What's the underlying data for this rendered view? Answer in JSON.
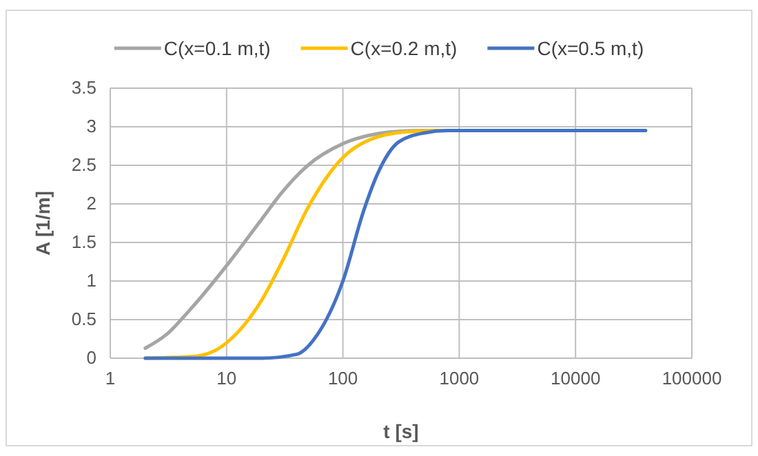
{
  "chart_data": {
    "type": "line",
    "xlabel": "t [s]",
    "ylabel": "A [1/m]",
    "log": "x",
    "grid": true,
    "legend": "top",
    "line_style": "solid",
    "marker": "none",
    "xlim": [
      1,
      100000
    ],
    "xticks": [
      1,
      10,
      100,
      1000,
      10000,
      100000
    ],
    "ylim": [
      0,
      3.5
    ],
    "yticks": [
      0,
      0.5,
      1,
      1.5,
      2,
      2.5,
      3,
      3.5
    ],
    "series": [
      {
        "name": "C(x=0.1 m,t)",
        "color": "#a5a5a5",
        "x": [
          2,
          3,
          5,
          10,
          20,
          30,
          50,
          100,
          200,
          300,
          500,
          1000,
          40000
        ],
        "values": [
          0.13,
          0.3,
          0.65,
          1.2,
          1.8,
          2.15,
          2.5,
          2.78,
          2.91,
          2.94,
          2.95,
          2.95,
          2.95
        ]
      },
      {
        "name": "C(x=0.2 m,t)",
        "color": "#ffc000",
        "x": [
          2,
          5,
          8,
          10,
          20,
          30,
          50,
          100,
          200,
          400,
          700
        ],
        "values": [
          0,
          0.02,
          0.1,
          0.2,
          0.75,
          1.25,
          1.95,
          2.6,
          2.87,
          2.94,
          2.95
        ]
      },
      {
        "name": "C(x=0.5 m,t)",
        "color": "#4472c4",
        "x": [
          2,
          20,
          40,
          60,
          100,
          150,
          200,
          300,
          500,
          800,
          40000
        ],
        "values": [
          0,
          0,
          0.05,
          0.3,
          1.0,
          1.9,
          2.4,
          2.8,
          2.92,
          2.95,
          2.95
        ]
      }
    ]
  }
}
